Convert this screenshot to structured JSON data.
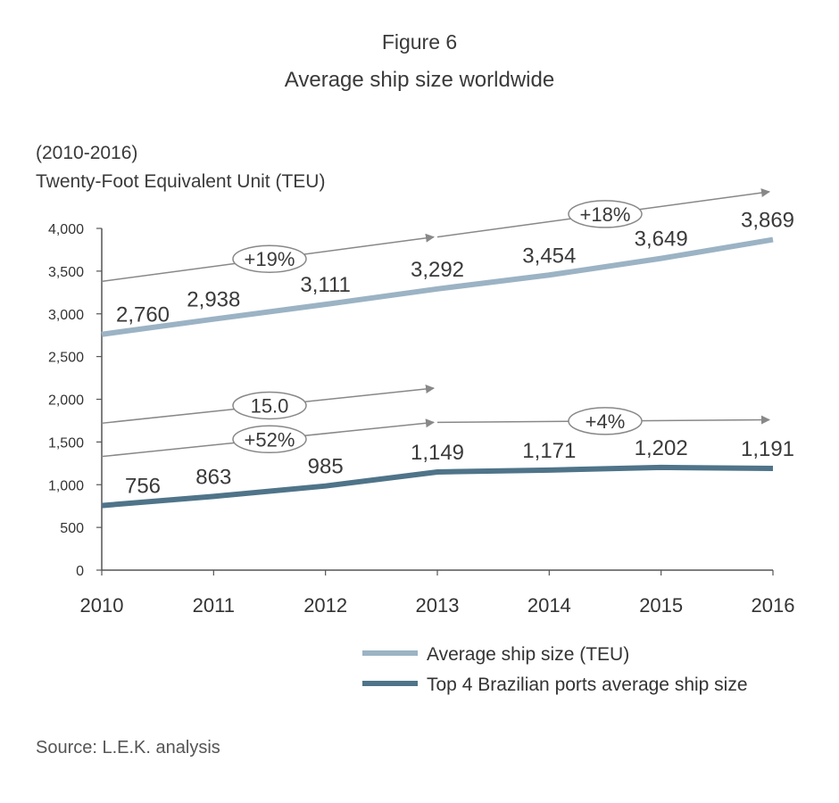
{
  "figure_label": "Figure 6",
  "title": "Average ship size worldwide",
  "subtitle": "(2010-2016)",
  "unit_label": "Twenty-Foot Equivalent Unit (TEU)",
  "source": "Source: L.E.K. analysis",
  "colors": {
    "series_world": "#9bb3c4",
    "series_brazil": "#4f7489",
    "arrow": "#888888",
    "axis": "#555555"
  },
  "chart_data": {
    "type": "line",
    "x": [
      "2010",
      "2011",
      "2012",
      "2013",
      "2014",
      "2015",
      "2016"
    ],
    "y_ticks": [
      "0",
      "500",
      "1,000",
      "1,500",
      "2,000",
      "2,500",
      "3,000",
      "3,500",
      "4,000"
    ],
    "ylim": [
      0,
      4000
    ],
    "grid": false,
    "legend_position": "bottom-right",
    "series": [
      {
        "name": "Average ship size (TEU)",
        "values": [
          2760,
          2938,
          3111,
          3292,
          3454,
          3649,
          3869
        ],
        "labels": [
          "2,760",
          "2,938",
          "3,111",
          "3,292",
          "3,454",
          "3,649",
          "3,869"
        ]
      },
      {
        "name": "Top 4 Brazilian ports average ship size",
        "values": [
          756,
          863,
          985,
          1149,
          1171,
          1202,
          1191
        ],
        "labels": [
          "756",
          "863",
          "985",
          "1,149",
          "1,171",
          "1,202",
          "1,191"
        ]
      }
    ],
    "annotations": [
      {
        "text": "+19%",
        "x_from": "2010",
        "x_to": "2013",
        "y_from": 3380,
        "y_to": 3900,
        "label_x": 2011.5
      },
      {
        "text": "+18%",
        "x_from": "2013",
        "x_to": "2016",
        "y_from": 3900,
        "y_to": 4430,
        "label_x": 2014.5
      },
      {
        "text": "15.0",
        "x_from": "2010",
        "x_to": "2013",
        "y_from": 1720,
        "y_to": 2130,
        "label_x": 2011.5
      },
      {
        "text": "+52%",
        "x_from": "2010",
        "x_to": "2013",
        "y_from": 1330,
        "y_to": 1730,
        "label_x": 2011.5
      },
      {
        "text": "+4%",
        "x_from": "2013",
        "x_to": "2016",
        "y_from": 1730,
        "y_to": 1760,
        "label_x": 2014.5
      }
    ]
  }
}
